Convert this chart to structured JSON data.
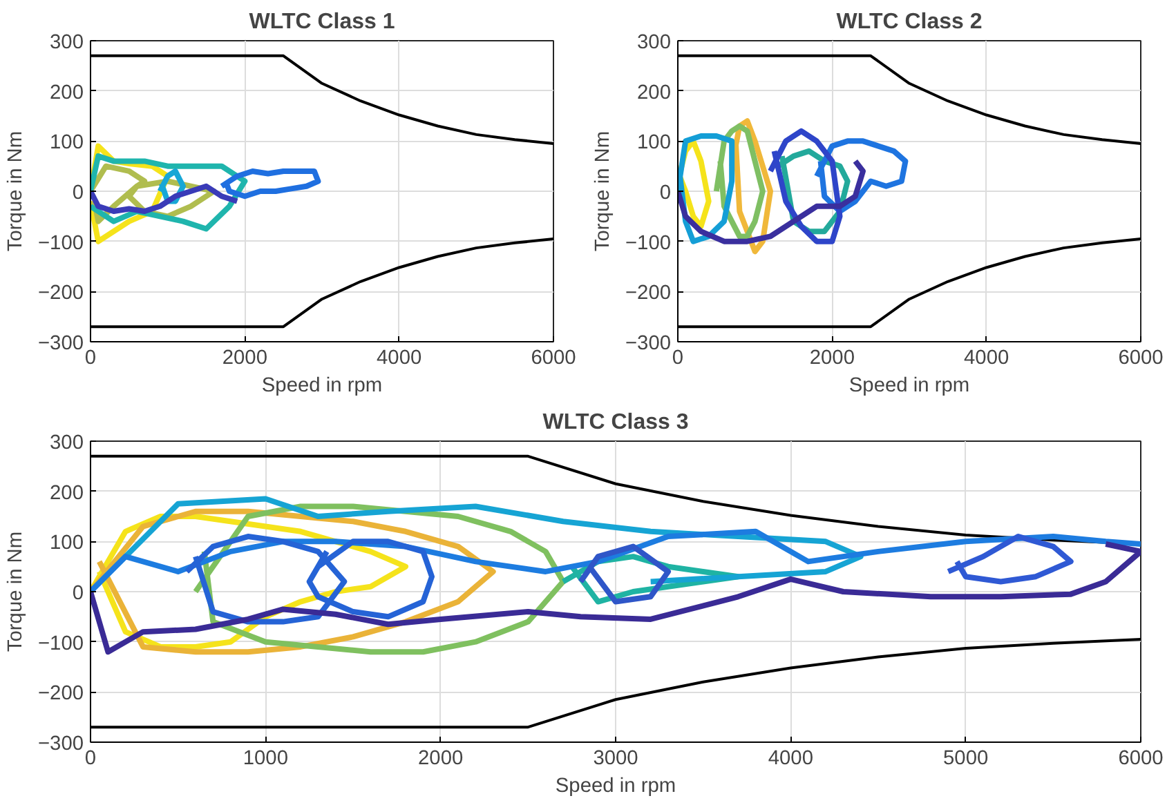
{
  "chart_data": [
    {
      "type": "line",
      "title": "WLTC Class 1",
      "xlabel": "Speed in rpm",
      "ylabel": "Torque in Nm",
      "xlim": [
        0,
        6000
      ],
      "ylim": [
        -300,
        300
      ],
      "xticks": [
        0,
        2000,
        4000,
        6000
      ],
      "yticks": [
        -300,
        -200,
        -100,
        0,
        100,
        200,
        300
      ],
      "grid": true,
      "series": [
        {
          "color": "#000000",
          "x": [
            0,
            2500,
            3000,
            3500,
            4000,
            4500,
            5000,
            5500,
            6000
          ],
          "values": [
            270,
            270,
            215,
            180,
            152,
            130,
            113,
            103,
            95
          ]
        },
        {
          "color": "#000000",
          "x": [
            0,
            2500,
            3000,
            3500,
            4000,
            4500,
            5000,
            5500,
            6000
          ],
          "values": [
            -270,
            -270,
            -215,
            -180,
            -152,
            -130,
            -113,
            -103,
            -95
          ]
        },
        {
          "color": "#f5e31b",
          "x": [
            0,
            100,
            300,
            500,
            800,
            1000,
            800,
            500,
            300,
            100,
            0
          ],
          "values": [
            0,
            90,
            60,
            55,
            50,
            30,
            -40,
            -60,
            -80,
            -100,
            -20
          ]
        },
        {
          "color": "#b0bd4f",
          "x": [
            0,
            200,
            500,
            700,
            600,
            500,
            700,
            1000,
            1300,
            1600,
            1300,
            1000,
            600,
            300,
            100,
            50
          ],
          "values": [
            0,
            50,
            40,
            20,
            10,
            -10,
            -40,
            -50,
            -30,
            0,
            10,
            20,
            10,
            -30,
            -60,
            -20
          ]
        },
        {
          "color": "#1fb5ad",
          "x": [
            0,
            100,
            300,
            700,
            1000,
            1300,
            1700,
            2000,
            1800,
            1500,
            1200,
            900,
            600,
            300,
            0
          ],
          "values": [
            0,
            70,
            60,
            60,
            50,
            50,
            50,
            20,
            -30,
            -75,
            -60,
            -50,
            -40,
            -60,
            -30
          ]
        },
        {
          "color": "#18a7d6",
          "x": [
            900,
            1000,
            1100,
            1200,
            1100,
            1000,
            920
          ],
          "values": [
            0,
            30,
            40,
            10,
            -20,
            -20,
            15
          ]
        },
        {
          "color": "#1f6fe0",
          "x": [
            1700,
            1900,
            2100,
            2300,
            2500,
            2700,
            2900,
            2950,
            2800,
            2600,
            2400,
            2200,
            2000,
            1800,
            1750
          ],
          "values": [
            10,
            30,
            40,
            35,
            40,
            40,
            40,
            20,
            10,
            5,
            0,
            0,
            -10,
            0,
            20
          ]
        },
        {
          "color": "#3a3bb8",
          "x": [
            0,
            100,
            300,
            500,
            700,
            900,
            1100,
            1300,
            1500,
            1700,
            1900
          ],
          "values": [
            0,
            -30,
            -40,
            -35,
            -40,
            -30,
            -10,
            0,
            10,
            -10,
            -20
          ]
        }
      ]
    },
    {
      "type": "line",
      "title": "WLTC Class 2",
      "xlabel": "Speed in rpm",
      "ylabel": "Torque in Nm",
      "xlim": [
        0,
        6000
      ],
      "ylim": [
        -300,
        300
      ],
      "xticks": [
        0,
        2000,
        4000,
        6000
      ],
      "yticks": [
        -300,
        -200,
        -100,
        0,
        100,
        200,
        300
      ],
      "grid": true,
      "series": [
        {
          "color": "#000000",
          "x": [
            0,
            2500,
            3000,
            3500,
            4000,
            4500,
            5000,
            5500,
            6000
          ],
          "values": [
            270,
            270,
            215,
            180,
            152,
            130,
            113,
            103,
            95
          ]
        },
        {
          "color": "#000000",
          "x": [
            0,
            2500,
            3000,
            3500,
            4000,
            4500,
            5000,
            5500,
            6000
          ],
          "values": [
            -270,
            -270,
            -215,
            -180,
            -152,
            -130,
            -113,
            -103,
            -95
          ]
        },
        {
          "color": "#f5e31b",
          "x": [
            0,
            100,
            200,
            300,
            400,
            300,
            200,
            100,
            0
          ],
          "values": [
            20,
            80,
            100,
            60,
            -20,
            -70,
            -50,
            0,
            40
          ]
        },
        {
          "color": "#f0b83a",
          "x": [
            700,
            800,
            900,
            1000,
            1100,
            1200,
            1100,
            1000,
            900,
            800,
            750
          ],
          "values": [
            50,
            130,
            140,
            100,
            50,
            0,
            -100,
            -120,
            -80,
            -40,
            100
          ]
        },
        {
          "color": "#7fbf63",
          "x": [
            500,
            600,
            700,
            800,
            900,
            1000,
            1100,
            1000,
            900,
            800,
            700,
            600,
            550
          ],
          "values": [
            0,
            100,
            120,
            130,
            120,
            60,
            0,
            -60,
            -90,
            -90,
            -60,
            -30,
            60
          ]
        },
        {
          "color": "#23a99b",
          "x": [
            1300,
            1500,
            1700,
            1900,
            2100,
            2200,
            2100,
            1900,
            1700,
            1500,
            1350
          ],
          "values": [
            50,
            70,
            80,
            60,
            50,
            20,
            -40,
            -80,
            -80,
            -60,
            70
          ]
        },
        {
          "color": "#149ed6",
          "x": [
            0,
            100,
            300,
            500,
            700,
            700,
            600,
            400,
            200,
            100,
            20
          ],
          "values": [
            0,
            100,
            110,
            110,
            100,
            20,
            -60,
            -90,
            -100,
            -60,
            40
          ]
        },
        {
          "color": "#1e74e0",
          "x": [
            1800,
            2000,
            2200,
            2400,
            2600,
            2800,
            2950,
            2900,
            2700,
            2500,
            2300,
            2100,
            1900,
            1850
          ],
          "values": [
            30,
            90,
            100,
            100,
            90,
            80,
            60,
            20,
            10,
            20,
            -20,
            -40,
            -10,
            60
          ]
        },
        {
          "color": "#2e45c9",
          "x": [
            1200,
            1400,
            1600,
            1800,
            2000,
            2100,
            2000,
            1800,
            1600,
            1400,
            1250
          ],
          "values": [
            40,
            100,
            120,
            100,
            60,
            -50,
            -100,
            -100,
            -70,
            -20,
            80
          ]
        },
        {
          "color": "#3a2f9e",
          "x": [
            0,
            100,
            300,
            600,
            900,
            1200,
            1500,
            1800,
            2100,
            2300,
            2400,
            2300
          ],
          "values": [
            0,
            -50,
            -80,
            -100,
            -100,
            -90,
            -60,
            -30,
            -30,
            -10,
            40,
            60
          ]
        }
      ]
    },
    {
      "type": "line",
      "title": "WLTC Class 3",
      "xlabel": "Speed in rpm",
      "ylabel": "Torque in Nm",
      "xlim": [
        0,
        6000
      ],
      "ylim": [
        -300,
        300
      ],
      "xticks": [
        0,
        1000,
        2000,
        3000,
        4000,
        5000,
        6000
      ],
      "yticks": [
        -300,
        -200,
        -100,
        0,
        100,
        200,
        300
      ],
      "grid": true,
      "series": [
        {
          "color": "#000000",
          "x": [
            0,
            2500,
            3000,
            3500,
            4000,
            4500,
            5000,
            5500,
            6000
          ],
          "values": [
            270,
            270,
            215,
            180,
            152,
            130,
            113,
            103,
            95
          ]
        },
        {
          "color": "#000000",
          "x": [
            0,
            2500,
            3000,
            3500,
            4000,
            4500,
            5000,
            5500,
            6000
          ],
          "values": [
            -270,
            -270,
            -215,
            -180,
            -152,
            -130,
            -113,
            -103,
            -95
          ]
        },
        {
          "color": "#f5e31b",
          "x": [
            0,
            200,
            400,
            600,
            800,
            1000,
            1200,
            1400,
            1600,
            1800,
            1600,
            1400,
            1200,
            1000,
            800,
            600,
            400,
            200,
            50
          ],
          "values": [
            0,
            120,
            150,
            150,
            140,
            130,
            120,
            100,
            80,
            50,
            10,
            0,
            -20,
            -50,
            -100,
            -110,
            -110,
            -80,
            40
          ]
        },
        {
          "color": "#eab338",
          "x": [
            0,
            300,
            600,
            900,
            1200,
            1500,
            1800,
            2100,
            2300,
            2100,
            1800,
            1500,
            1200,
            900,
            600,
            300,
            50
          ],
          "values": [
            0,
            130,
            160,
            160,
            150,
            140,
            120,
            90,
            40,
            -20,
            -60,
            -90,
            -110,
            -120,
            -120,
            -110,
            60
          ]
        },
        {
          "color": "#7fc05f",
          "x": [
            600,
            900,
            1200,
            1500,
            1800,
            2100,
            2400,
            2600,
            2700,
            2500,
            2200,
            1900,
            1600,
            1300,
            1000,
            700,
            650
          ],
          "values": [
            0,
            150,
            170,
            170,
            160,
            150,
            120,
            80,
            20,
            -60,
            -100,
            -120,
            -120,
            -110,
            -100,
            -60,
            80
          ]
        },
        {
          "color": "#1fb3a3",
          "x": [
            2700,
            2900,
            3100,
            3300,
            3500,
            3700,
            3500,
            3300,
            3100,
            2900,
            2750
          ],
          "values": [
            20,
            60,
            70,
            50,
            40,
            30,
            20,
            10,
            0,
            -20,
            50
          ]
        },
        {
          "color": "#16a4d4",
          "x": [
            0,
            500,
            1000,
            1300,
            1700,
            2200,
            2700,
            3200,
            3700,
            4200,
            4400,
            4200,
            3700,
            3200
          ],
          "values": [
            0,
            175,
            185,
            150,
            160,
            170,
            140,
            120,
            110,
            100,
            70,
            40,
            30,
            20
          ]
        },
        {
          "color": "#1d7ce0",
          "x": [
            0,
            200,
            500,
            800,
            1100,
            1400,
            1800,
            2200,
            2600,
            2900,
            3300,
            3800,
            4100,
            4500,
            5000,
            5500,
            5800,
            6000
          ],
          "values": [
            0,
            70,
            40,
            80,
            100,
            100,
            90,
            60,
            40,
            60,
            110,
            120,
            60,
            80,
            100,
            110,
            100,
            95
          ]
        },
        {
          "color": "#2563d6",
          "x": [
            550,
            700,
            900,
            1100,
            1300,
            1450,
            1300,
            1100,
            900,
            700,
            600
          ],
          "values": [
            40,
            90,
            110,
            100,
            80,
            20,
            -50,
            -60,
            -60,
            -40,
            70
          ]
        },
        {
          "color": "#2563d6",
          "x": [
            1300,
            1500,
            1700,
            1900,
            1950,
            1900,
            1700,
            1500,
            1300,
            1250,
            1350
          ],
          "values": [
            50,
            100,
            100,
            80,
            30,
            -20,
            -50,
            -40,
            -10,
            20,
            80
          ]
        },
        {
          "color": "#2f56c8",
          "x": [
            2800,
            2900,
            3100,
            3300,
            3200,
            3000,
            2850
          ],
          "values": [
            20,
            70,
            90,
            40,
            -10,
            -20,
            50
          ]
        },
        {
          "color": "#2f59d4",
          "x": [
            4900,
            5100,
            5300,
            5500,
            5600,
            5400,
            5200,
            5000,
            4950
          ],
          "values": [
            40,
            70,
            110,
            90,
            60,
            30,
            20,
            30,
            60
          ]
        },
        {
          "color": "#3a2b96",
          "x": [
            0,
            100,
            300,
            600,
            900,
            1100,
            1400,
            1700,
            2000,
            2500,
            2800,
            3200,
            3700,
            4000,
            4300,
            4800,
            5200,
            5600,
            5800,
            6000,
            5800
          ],
          "values": [
            0,
            -120,
            -80,
            -75,
            -55,
            -35,
            -45,
            -65,
            -55,
            -40,
            -50,
            -55,
            -10,
            25,
            0,
            -10,
            -10,
            -5,
            20,
            80,
            95
          ]
        }
      ]
    }
  ]
}
